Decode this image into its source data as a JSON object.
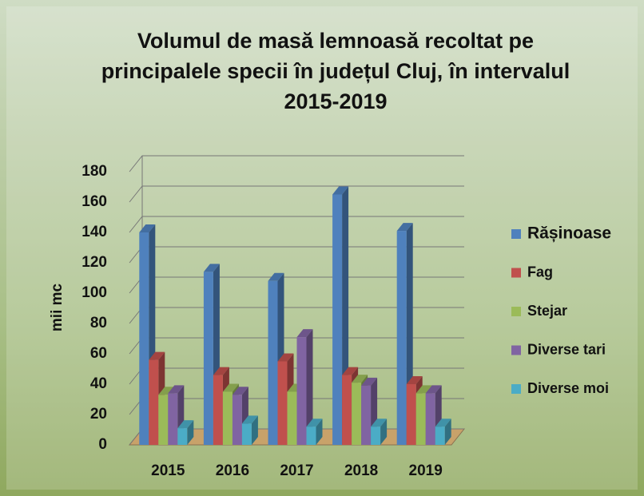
{
  "chart_data": {
    "type": "bar3d",
    "title": "Volumul de masă lemnoasă recoltat pe principalele specii în județul Cluj, în intervalul 2015-2019",
    "y_label": "mii mc",
    "categories": [
      "2015",
      "2016",
      "2017",
      "2018",
      "2019"
    ],
    "series": [
      {
        "name": "Rășinoase",
        "color": "#4f81bd",
        "values": [
          140,
          114,
          108,
          165,
          141
        ]
      },
      {
        "name": "Fag",
        "color": "#c0504d",
        "values": [
          56,
          46,
          55,
          46,
          40
        ]
      },
      {
        "name": "Stejar",
        "color": "#9bbb59",
        "values": [
          33,
          35,
          35,
          41,
          34
        ]
      },
      {
        "name": "Diverse tari",
        "color": "#8064a2",
        "values": [
          34,
          33,
          71,
          39,
          34
        ]
      },
      {
        "name": "Diverse moi",
        "color": "#4bacc6",
        "values": [
          11,
          14,
          12,
          12,
          12
        ]
      }
    ],
    "ylim": [
      0,
      180
    ],
    "yticks": [
      0,
      20,
      40,
      60,
      80,
      100,
      120,
      140,
      160,
      180
    ],
    "grid": true,
    "legend": "right"
  }
}
